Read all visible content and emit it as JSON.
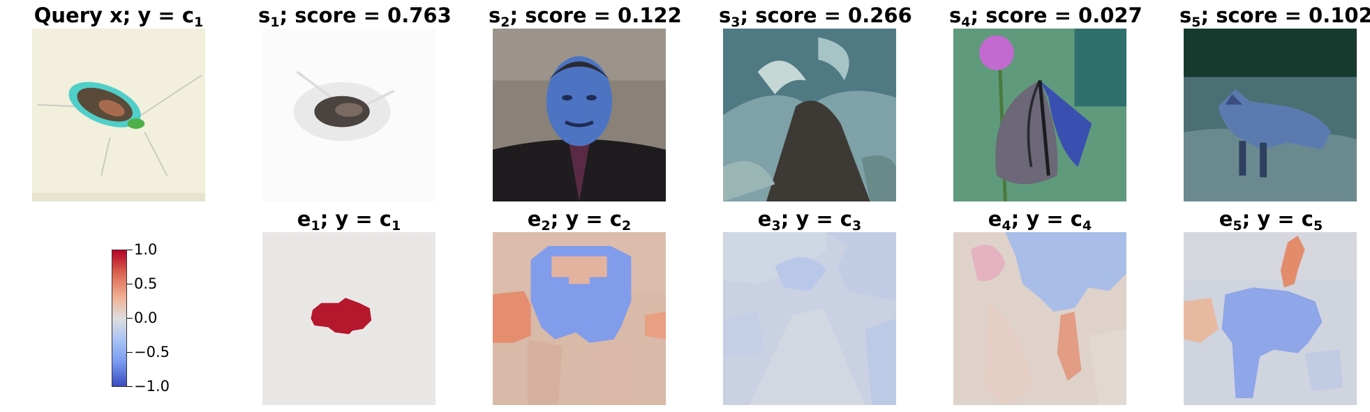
{
  "top_row": [
    {
      "title_main": "Query x; y = c",
      "title_sub": "1",
      "image": "cockroach-icon"
    },
    {
      "title_main": "s",
      "title_sub": "1",
      "title_rest": "; score = 0.763",
      "image": "cockroach-icon"
    },
    {
      "title_main": "s",
      "title_sub": "2",
      "title_rest": "; score = 0.122",
      "image": "person-portrait-icon"
    },
    {
      "title_main": "s",
      "title_sub": "3",
      "title_rest": "; score = 0.266",
      "image": "animal-in-water-icon"
    },
    {
      "title_main": "s",
      "title_sub": "4",
      "title_rest": "; score = 0.027",
      "image": "butterfly-icon"
    },
    {
      "title_main": "s",
      "title_sub": "5",
      "title_rest": "; score = 0.102",
      "image": "fox-icon"
    }
  ],
  "bottom_row": [
    {
      "title_main": "e",
      "title_sub": "1",
      "title_mid": "; y = c",
      "title_sub2": "1"
    },
    {
      "title_main": "e",
      "title_sub": "2",
      "title_mid": "; y = c",
      "title_sub2": "2"
    },
    {
      "title_main": "e",
      "title_sub": "3",
      "title_mid": "; y = c",
      "title_sub2": "3"
    },
    {
      "title_main": "e",
      "title_sub": "4",
      "title_mid": "; y = c",
      "title_sub2": "4"
    },
    {
      "title_main": "e",
      "title_sub": "5",
      "title_mid": "; y = c",
      "title_sub2": "5"
    }
  ],
  "colorbar": {
    "ticks": [
      "1.0",
      "0.5",
      "0.0",
      "−0.5",
      "−1.0"
    ],
    "range": [
      -1.0,
      1.0
    ],
    "colormap": "coolwarm"
  }
}
